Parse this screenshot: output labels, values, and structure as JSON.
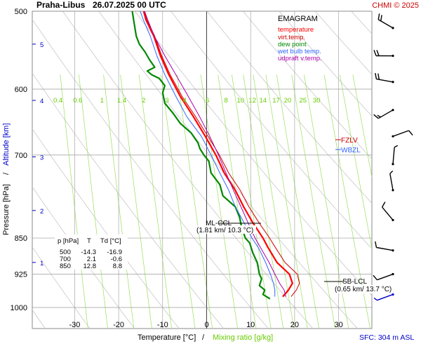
{
  "header": {
    "station": "Praha-Libus",
    "datetime": "26.07.2025 00 UTC",
    "copyright": "CHMI © 2025"
  },
  "legend": {
    "title": "EMAGRAM",
    "items": [
      {
        "label": "temperature",
        "color": "#ff0000"
      },
      {
        "label": "virt.temp.",
        "color": "#cc0000"
      },
      {
        "label": "dew point",
        "color": "#008800"
      },
      {
        "label": "wet bulb temp.",
        "color": "#3366ff"
      },
      {
        "label": "udpraft v.temp.",
        "color": "#aa00aa"
      }
    ]
  },
  "axes": {
    "xlabel_part1": "Temperature [°C]",
    "xlabel_sep": "/",
    "xlabel_part2": "Mixing ratio [g/kg]",
    "ylabel_part1": "Pressure [hPa]",
    "ylabel_sep": "/",
    "ylabel_part2": "Altitude [km]",
    "sfc": "SFC: 304 m ASL"
  },
  "markers": {
    "fzlv": "FZLV",
    "wbzl": "WBZL",
    "ml_ccl_line1": "ML-CCL",
    "ml_ccl_line2": "(1.81 km/ 10.3 °C)",
    "sb_lcl_line1": "SB-LCL",
    "sb_lcl_line2": "(0.65 km/ 13.7 °C)"
  },
  "table": {
    "headers": [
      "p [hPa]",
      "T",
      "Td [°C]"
    ],
    "rows": [
      [
        "500",
        "-14.3",
        "-16.9"
      ],
      [
        "700",
        "2.1",
        "-0.6"
      ],
      [
        "850",
        "12.8",
        "8.8"
      ]
    ]
  },
  "chart_data": {
    "type": "line",
    "title": "Praha-Libus 26.07.2025 00 UTC",
    "xlabel": "Temperature [°C] / Mixing ratio [g/kg]",
    "ylabel": "Pressure [hPa] / Altitude [km]",
    "xlim": [
      -40,
      35
    ],
    "ylim": [
      1000,
      500
    ],
    "y_scale": "log",
    "x_ticks": [
      -30,
      -20,
      -10,
      0,
      10,
      20,
      30
    ],
    "pressure_ticks": [
      500,
      600,
      700,
      850,
      925,
      1000
    ],
    "altitude_ticks_km": [
      1,
      2,
      3,
      4,
      5
    ],
    "altitude_tick_pressures": [
      900,
      797,
      703,
      616,
      540
    ],
    "mixing_ratio_labels": [
      "0.4",
      "0.6",
      "1",
      "1.4",
      "2",
      "3",
      "4",
      "6",
      "8",
      "10",
      "12",
      "14",
      "17",
      "20",
      "25",
      "30"
    ],
    "mixing_ratio_label_temps": [
      -33.8,
      -29.3,
      -23.8,
      -19.3,
      -14.3,
      -9.0,
      -5.0,
      0.2,
      4.4,
      7.7,
      10.4,
      12.8,
      15.8,
      18.4,
      21.9,
      25.0
    ],
    "grid": true,
    "series": [
      {
        "name": "temperature",
        "color": "#ff0000",
        "p": [
          975,
          960,
          945,
          925,
          900,
          870,
          850,
          820,
          790,
          760,
          730,
          700,
          670,
          640,
          610,
          580,
          555,
          530,
          510,
          500
        ],
        "values": [
          17.3,
          18.6,
          19.5,
          18.8,
          16.0,
          14.0,
          12.8,
          10.5,
          8.4,
          6.5,
          4.0,
          2.1,
          -0.3,
          -3.0,
          -6.0,
          -8.6,
          -10.5,
          -12.0,
          -13.8,
          -14.3
        ]
      },
      {
        "name": "virt.temp.",
        "color": "#cc0000",
        "p": [
          975,
          960,
          945,
          925,
          900,
          870,
          850,
          820,
          790,
          760,
          730,
          700,
          670,
          640,
          610,
          580,
          555,
          530,
          510,
          500
        ],
        "values": [
          19.2,
          20.4,
          21.1,
          20.6,
          17.8,
          15.7,
          14.3,
          11.9,
          9.6,
          7.6,
          5.0,
          2.9,
          0.3,
          -2.5,
          -5.6,
          -8.3,
          -10.2,
          -11.8,
          -13.6,
          -14.1
        ]
      },
      {
        "name": "dew point",
        "color": "#008800",
        "p": [
          980,
          970,
          960,
          950,
          935,
          925,
          900,
          880,
          860,
          850,
          830,
          810,
          790,
          770,
          750,
          730,
          710,
          700,
          690,
          680,
          665,
          650,
          635,
          620,
          605,
          595,
          585,
          580,
          575,
          570,
          560,
          550,
          540,
          530,
          520,
          510,
          500
        ],
        "values": [
          14.4,
          12.8,
          13.2,
          12.0,
          12.5,
          12.0,
          11.5,
          10.5,
          9.8,
          8.8,
          8.0,
          7.5,
          6.5,
          3.7,
          3.0,
          1.0,
          0.5,
          -0.6,
          -1.5,
          -2.0,
          -3.5,
          -6.0,
          -7.6,
          -9.5,
          -10.0,
          -9.5,
          -10.8,
          -12.5,
          -13.5,
          -11.8,
          -13.0,
          -14.0,
          -15.3,
          -16.0,
          -16.3,
          -16.6,
          -16.9
        ]
      },
      {
        "name": "wet bulb temp.",
        "color": "#3366ff",
        "p": [
          975,
          960,
          945,
          925,
          900,
          870,
          850,
          820,
          790,
          760,
          730,
          700,
          670,
          640,
          610,
          580,
          555,
          530,
          510,
          500
        ],
        "values": [
          15.5,
          15.5,
          15.2,
          14.5,
          13.4,
          11.8,
          10.3,
          8.5,
          6.5,
          5.0,
          3.0,
          1.0,
          -1.2,
          -4.5,
          -7.0,
          -9.5,
          -11.3,
          -12.8,
          -14.4,
          -15.1
        ]
      },
      {
        "name": "udpraft v.temp.",
        "color": "#aa00aa",
        "p": [
          975,
          960,
          945,
          925,
          900,
          870,
          850,
          820,
          790,
          760,
          730,
          700,
          670,
          640,
          610,
          580,
          555,
          530,
          510,
          500
        ],
        "values": [
          18.0,
          17.6,
          16.6,
          15.5,
          14.2,
          12.3,
          11.0,
          9.4,
          7.8,
          6.1,
          4.4,
          2.7,
          0.7,
          -1.6,
          -4.2,
          -7.0,
          -9.5,
          -11.9,
          -13.4,
          -14.1
        ]
      }
    ],
    "wind_barbs": [
      {
        "p": 970,
        "dir": 250,
        "speed_kt": 5,
        "color": "#0000cc"
      },
      {
        "p": 925,
        "dir": 250,
        "speed_kt": 10,
        "color": "#000000"
      },
      {
        "p": 875,
        "dir": 280,
        "speed_kt": 10,
        "color": "#000000"
      },
      {
        "p": 815,
        "dir": 320,
        "speed_kt": 10,
        "color": "#000000"
      },
      {
        "p": 760,
        "dir": 350,
        "speed_kt": 5,
        "color": "#000000"
      },
      {
        "p": 715,
        "dir": 5,
        "speed_kt": 5,
        "color": "#000000"
      },
      {
        "p": 670,
        "dir": 70,
        "speed_kt": 10,
        "color": "#000000"
      },
      {
        "p": 630,
        "dir": 240,
        "speed_kt": 15,
        "color": "#000000"
      },
      {
        "p": 590,
        "dir": 280,
        "speed_kt": 20,
        "color": "#000000"
      },
      {
        "p": 555,
        "dir": 270,
        "speed_kt": 20,
        "color": "#000000"
      },
      {
        "p": 520,
        "dir": 300,
        "speed_kt": 20,
        "color": "#000000"
      }
    ]
  }
}
